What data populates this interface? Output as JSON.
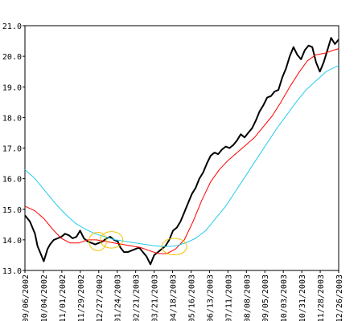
{
  "chart_data": {
    "type": "line",
    "x_labels": [
      "09/06/2002",
      "10/04/2002",
      "11/01/2002",
      "11/29/2002",
      "12/27/2002",
      "01/24/2003",
      "02/21/2003",
      "03/21/2003",
      "04/18/2003",
      "05/16/2003",
      "06/13/2003",
      "07/11/2003",
      "08/08/2003",
      "09/05/2003",
      "10/03/2003",
      "10/31/2003",
      "11/28/2003",
      "12/26/2003"
    ],
    "ylim": [
      13.0,
      21.0
    ],
    "yticks": [
      "13.0",
      "14.0",
      "15.0",
      "16.0",
      "17.0",
      "18.0",
      "19.0",
      "20.0",
      "21.0"
    ],
    "grid": false,
    "series": [
      {
        "color": "#000000",
        "width": 2,
        "points": [
          [
            0,
            14.8
          ],
          [
            0.4,
            14.6
          ],
          [
            0.8,
            14.2
          ],
          [
            1.0,
            13.8
          ],
          [
            1.3,
            13.5
          ],
          [
            1.5,
            13.3
          ],
          [
            1.8,
            13.7
          ],
          [
            2.0,
            13.85
          ],
          [
            2.3,
            14.0
          ],
          [
            2.6,
            14.05
          ],
          [
            2.9,
            14.1
          ],
          [
            3.2,
            14.2
          ],
          [
            3.5,
            14.15
          ],
          [
            3.8,
            14.05
          ],
          [
            4.1,
            14.1
          ],
          [
            4.4,
            14.3
          ],
          [
            4.7,
            14.05
          ],
          [
            5.0,
            13.95
          ],
          [
            5.3,
            13.9
          ],
          [
            5.6,
            13.85
          ],
          [
            5.9,
            13.9
          ],
          [
            6.2,
            13.95
          ],
          [
            6.5,
            14.05
          ],
          [
            6.8,
            14.1
          ],
          [
            7.1,
            14.0
          ],
          [
            7.4,
            13.95
          ],
          [
            7.6,
            13.75
          ],
          [
            7.9,
            13.6
          ],
          [
            8.2,
            13.6
          ],
          [
            8.5,
            13.65
          ],
          [
            8.8,
            13.7
          ],
          [
            9.1,
            13.75
          ],
          [
            9.4,
            13.6
          ],
          [
            9.7,
            13.45
          ],
          [
            10.0,
            13.2
          ],
          [
            10.3,
            13.5
          ],
          [
            10.6,
            13.6
          ],
          [
            10.9,
            13.7
          ],
          [
            11.2,
            13.8
          ],
          [
            11.5,
            14.0
          ],
          [
            11.8,
            14.3
          ],
          [
            12.1,
            14.4
          ],
          [
            12.4,
            14.6
          ],
          [
            12.7,
            14.9
          ],
          [
            13.0,
            15.2
          ],
          [
            13.3,
            15.5
          ],
          [
            13.6,
            15.7
          ],
          [
            13.9,
            16.0
          ],
          [
            14.2,
            16.2
          ],
          [
            14.5,
            16.5
          ],
          [
            14.8,
            16.75
          ],
          [
            15.1,
            16.85
          ],
          [
            15.4,
            16.8
          ],
          [
            15.7,
            16.95
          ],
          [
            16.0,
            17.05
          ],
          [
            16.3,
            17.0
          ],
          [
            16.6,
            17.1
          ],
          [
            16.9,
            17.25
          ],
          [
            17.2,
            17.45
          ],
          [
            17.5,
            17.35
          ],
          [
            17.8,
            17.5
          ],
          [
            18.1,
            17.65
          ],
          [
            18.4,
            17.9
          ],
          [
            18.7,
            18.2
          ],
          [
            19.0,
            18.4
          ],
          [
            19.3,
            18.65
          ],
          [
            19.6,
            18.7
          ],
          [
            19.9,
            18.85
          ],
          [
            20.2,
            18.9
          ],
          [
            20.5,
            19.3
          ],
          [
            20.8,
            19.6
          ],
          [
            21.1,
            20.0
          ],
          [
            21.4,
            20.3
          ],
          [
            21.7,
            20.05
          ],
          [
            22.0,
            19.9
          ],
          [
            22.3,
            20.2
          ],
          [
            22.6,
            20.35
          ],
          [
            22.9,
            20.3
          ],
          [
            23.2,
            19.8
          ],
          [
            23.5,
            19.5
          ],
          [
            23.8,
            19.8
          ],
          [
            24.1,
            20.2
          ],
          [
            24.4,
            20.6
          ],
          [
            24.7,
            20.4
          ],
          [
            25.0,
            20.55
          ]
        ]
      },
      {
        "color": "#ff0000",
        "width": 1,
        "points": [
          [
            0,
            15.1
          ],
          [
            0.8,
            14.95
          ],
          [
            1.5,
            14.7
          ],
          [
            2.2,
            14.35
          ],
          [
            2.9,
            14.05
          ],
          [
            3.6,
            13.9
          ],
          [
            4.3,
            13.9
          ],
          [
            5.0,
            14.0
          ],
          [
            5.7,
            14.0
          ],
          [
            6.4,
            13.95
          ],
          [
            7.1,
            13.9
          ],
          [
            7.8,
            13.85
          ],
          [
            8.5,
            13.8
          ],
          [
            9.2,
            13.75
          ],
          [
            9.9,
            13.65
          ],
          [
            10.6,
            13.55
          ],
          [
            11.3,
            13.55
          ],
          [
            12.0,
            13.7
          ],
          [
            12.7,
            14.0
          ],
          [
            13.4,
            14.6
          ],
          [
            14.1,
            15.3
          ],
          [
            14.8,
            15.9
          ],
          [
            15.5,
            16.3
          ],
          [
            16.2,
            16.6
          ],
          [
            16.9,
            16.85
          ],
          [
            17.6,
            17.1
          ],
          [
            18.3,
            17.35
          ],
          [
            19.0,
            17.7
          ],
          [
            19.7,
            18.05
          ],
          [
            20.4,
            18.5
          ],
          [
            21.1,
            19.0
          ],
          [
            21.8,
            19.45
          ],
          [
            22.5,
            19.85
          ],
          [
            23.2,
            20.05
          ],
          [
            23.9,
            20.1
          ],
          [
            24.6,
            20.2
          ],
          [
            25.0,
            20.25
          ]
        ]
      },
      {
        "color": "#22ccee",
        "width": 1,
        "points": [
          [
            0,
            16.3
          ],
          [
            0.8,
            16.0
          ],
          [
            1.6,
            15.6
          ],
          [
            2.4,
            15.2
          ],
          [
            3.2,
            14.85
          ],
          [
            4.0,
            14.55
          ],
          [
            4.8,
            14.35
          ],
          [
            5.6,
            14.2
          ],
          [
            6.4,
            14.1
          ],
          [
            7.2,
            14.0
          ],
          [
            8.0,
            13.95
          ],
          [
            8.8,
            13.9
          ],
          [
            9.6,
            13.85
          ],
          [
            10.4,
            13.8
          ],
          [
            11.2,
            13.78
          ],
          [
            12.0,
            13.8
          ],
          [
            12.8,
            13.9
          ],
          [
            13.6,
            14.05
          ],
          [
            14.4,
            14.3
          ],
          [
            15.2,
            14.7
          ],
          [
            16.0,
            15.1
          ],
          [
            16.8,
            15.6
          ],
          [
            17.6,
            16.1
          ],
          [
            18.4,
            16.6
          ],
          [
            19.2,
            17.1
          ],
          [
            20.0,
            17.6
          ],
          [
            20.8,
            18.05
          ],
          [
            21.6,
            18.5
          ],
          [
            22.4,
            18.9
          ],
          [
            23.2,
            19.2
          ],
          [
            24.0,
            19.5
          ],
          [
            25.0,
            19.7
          ]
        ]
      }
    ]
  },
  "annotations": [
    {
      "color": "#f2c200",
      "cx": 5.8,
      "cy": 13.95,
      "rx": 0.7,
      "ry": 0.3
    },
    {
      "color": "#f2c200",
      "cx": 6.9,
      "cy": 14.0,
      "rx": 0.9,
      "ry": 0.27
    },
    {
      "color": "#f2c200",
      "cx": 11.9,
      "cy": 13.78,
      "rx": 1.0,
      "ry": 0.27
    }
  ]
}
